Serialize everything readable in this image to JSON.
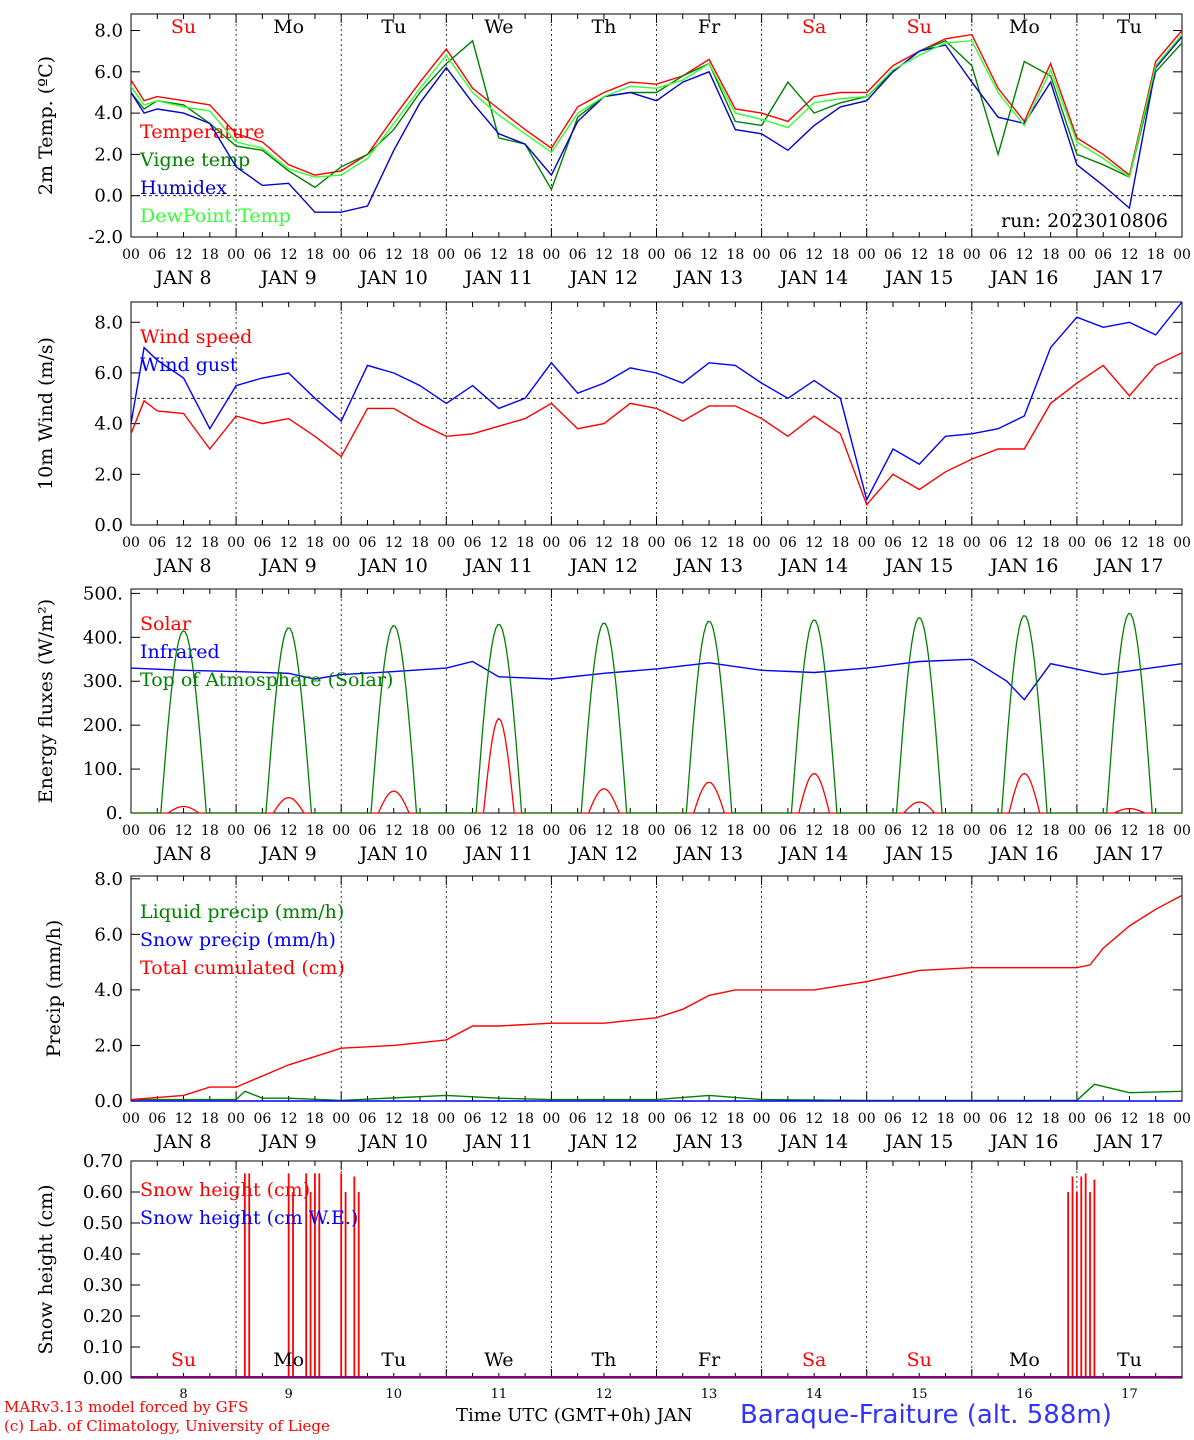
{
  "run": "run: 2023010806",
  "day_labels_top": [
    "Su",
    "Mo",
    "Tu",
    "We",
    "Th",
    "Fr",
    "Sa",
    "Su",
    "Mo",
    "Tu"
  ],
  "day_colors": [
    "#ff0000",
    "#000000",
    "#000000",
    "#000000",
    "#000000",
    "#000000",
    "#ff0000",
    "#ff0000",
    "#000000",
    "#000000"
  ],
  "hour_ticks": [
    "00",
    "06",
    "12",
    "18"
  ],
  "date_labels": [
    "JAN  8",
    "JAN  9",
    "JAN 10",
    "JAN 11",
    "JAN 12",
    "JAN 13",
    "JAN 14",
    "JAN 15",
    "JAN 16",
    "JAN 17"
  ],
  "bottom_day_numbers": [
    "8",
    "9",
    "10",
    "11",
    "12",
    "13",
    "14",
    "15",
    "16",
    "17"
  ],
  "footer": {
    "model": "MARv3.13 model forced by GFS",
    "credit": "(c) Lab. of Climatology, University of Liege",
    "xlabel": "Time UTC (GMT+0h) JAN",
    "station": "Baraque-Fraiture (alt. 588m)"
  },
  "chart_data": [
    {
      "type": "line",
      "ylabel": "2m Temp. (ºC)",
      "ylim": [
        -2,
        8.8
      ],
      "yticks": [
        "-2.0",
        "0.0",
        "2.0",
        "4.0",
        "6.0",
        "8.0"
      ],
      "ref_line": 0,
      "x_unit": "hours since Jan 8 00 UTC",
      "series": [
        {
          "name": "Temperature",
          "color": "#ff0000",
          "x": [
            0,
            3,
            6,
            12,
            18,
            24,
            30,
            36,
            42,
            48,
            54,
            60,
            66,
            72,
            78,
            84,
            90,
            96,
            102,
            108,
            114,
            120,
            126,
            132,
            138,
            144,
            150,
            156,
            162,
            168,
            174,
            180,
            186,
            192,
            198,
            204,
            210,
            216,
            222,
            228,
            234,
            240
          ],
          "y": [
            5.6,
            4.6,
            4.8,
            4.6,
            4.4,
            3.0,
            2.6,
            1.5,
            1.0,
            1.2,
            2.0,
            3.8,
            5.5,
            7.1,
            5.2,
            4.2,
            3.2,
            2.3,
            4.3,
            5.0,
            5.5,
            5.4,
            5.8,
            6.6,
            4.2,
            4.0,
            3.6,
            4.8,
            5.0,
            5.0,
            6.3,
            7.0,
            7.6,
            7.8,
            5.2,
            3.6,
            6.4,
            2.8,
            2.0,
            1.0,
            6.5,
            8.0
          ]
        },
        {
          "name": "Vigne temp",
          "color": "#008000",
          "x": [
            0,
            3,
            6,
            12,
            18,
            24,
            30,
            36,
            42,
            48,
            54,
            60,
            66,
            72,
            78,
            84,
            90,
            96,
            102,
            108,
            114,
            120,
            126,
            132,
            138,
            144,
            150,
            156,
            162,
            168,
            174,
            180,
            186,
            192,
            198,
            204,
            210,
            216,
            222,
            228,
            234,
            240
          ],
          "y": [
            5.0,
            4.2,
            4.6,
            4.4,
            3.5,
            2.4,
            2.2,
            1.2,
            0.4,
            1.4,
            2.0,
            3.2,
            5.0,
            6.4,
            7.5,
            2.8,
            2.5,
            0.3,
            3.8,
            4.8,
            5.0,
            5.0,
            5.8,
            6.4,
            3.6,
            3.4,
            5.5,
            4.0,
            4.5,
            4.8,
            6.0,
            7.0,
            7.5,
            6.3,
            2.0,
            6.5,
            5.8,
            2.0,
            1.5,
            0.9,
            6.0,
            7.4
          ]
        },
        {
          "name": "Humidex",
          "color": "#0000cc",
          "x": [
            0,
            3,
            6,
            12,
            18,
            24,
            30,
            36,
            42,
            48,
            54,
            60,
            66,
            72,
            78,
            84,
            90,
            96,
            102,
            108,
            114,
            120,
            126,
            132,
            138,
            144,
            150,
            156,
            162,
            168,
            174,
            180,
            186,
            192,
            198,
            204,
            210,
            216,
            222,
            228,
            234,
            240
          ],
          "y": [
            5.0,
            4.0,
            4.2,
            4.0,
            3.5,
            1.4,
            0.5,
            0.6,
            -0.8,
            -0.8,
            -0.5,
            2.2,
            4.5,
            6.2,
            4.5,
            3.0,
            2.5,
            1.0,
            3.6,
            4.8,
            5.0,
            4.6,
            5.5,
            6.0,
            3.2,
            3.0,
            2.2,
            3.4,
            4.3,
            4.6,
            6.0,
            7.0,
            7.3,
            5.5,
            3.8,
            3.5,
            5.5,
            1.5,
            0.5,
            -0.6,
            6.2,
            7.7
          ]
        },
        {
          "name": "DewPoint Temp",
          "color": "#33ff33",
          "x": [
            0,
            3,
            6,
            12,
            18,
            24,
            30,
            36,
            42,
            48,
            54,
            60,
            66,
            72,
            78,
            84,
            90,
            96,
            102,
            108,
            114,
            120,
            126,
            132,
            138,
            144,
            150,
            156,
            162,
            168,
            174,
            180,
            186,
            192,
            198,
            204,
            210,
            216,
            222,
            228,
            234,
            240
          ],
          "y": [
            5.3,
            4.4,
            4.6,
            4.3,
            4.1,
            2.6,
            2.3,
            1.3,
            0.9,
            1.0,
            1.8,
            3.5,
            5.2,
            6.8,
            5.0,
            3.9,
            3.0,
            2.1,
            4.0,
            4.8,
            5.3,
            5.2,
            5.6,
            6.4,
            4.0,
            3.7,
            3.3,
            4.5,
            4.7,
            4.8,
            6.1,
            6.8,
            7.4,
            7.5,
            5.0,
            3.4,
            6.1,
            2.6,
            1.8,
            0.9,
            6.3,
            7.8
          ]
        }
      ]
    },
    {
      "type": "line",
      "ylabel": "10m Wind (m/s)",
      "ylim": [
        0,
        8.8
      ],
      "yticks": [
        "0.0",
        "2.0",
        "4.0",
        "6.0",
        "8.0"
      ],
      "ref_line": 5,
      "series": [
        {
          "name": "Wind speed",
          "color": "#ff0000",
          "x": [
            0,
            3,
            6,
            12,
            18,
            24,
            30,
            36,
            42,
            48,
            54,
            60,
            66,
            72,
            78,
            84,
            90,
            96,
            102,
            108,
            114,
            120,
            126,
            132,
            138,
            144,
            150,
            156,
            162,
            168,
            174,
            180,
            186,
            192,
            198,
            204,
            210,
            216,
            222,
            228,
            234,
            240
          ],
          "y": [
            3.6,
            4.9,
            4.5,
            4.4,
            3.0,
            4.3,
            4.0,
            4.2,
            3.5,
            2.7,
            4.6,
            4.6,
            4.0,
            3.5,
            3.6,
            3.9,
            4.2,
            4.8,
            3.8,
            4.0,
            4.8,
            4.6,
            4.1,
            4.7,
            4.7,
            4.2,
            3.5,
            4.3,
            3.6,
            0.8,
            2.0,
            1.4,
            2.1,
            2.6,
            3.0,
            3.0,
            4.8,
            5.6,
            6.3,
            5.1,
            6.3,
            6.8
          ]
        },
        {
          "name": "Wind gust",
          "color": "#0000ff",
          "x": [
            0,
            3,
            6,
            12,
            18,
            24,
            30,
            36,
            42,
            48,
            54,
            60,
            66,
            72,
            78,
            84,
            90,
            96,
            102,
            108,
            114,
            120,
            126,
            132,
            138,
            144,
            150,
            156,
            162,
            168,
            174,
            180,
            186,
            192,
            198,
            204,
            210,
            216,
            222,
            228,
            234,
            240
          ],
          "y": [
            4.0,
            7.0,
            6.5,
            5.8,
            3.8,
            5.5,
            5.8,
            6.0,
            5.0,
            4.1,
            6.3,
            6.0,
            5.5,
            4.8,
            5.5,
            4.6,
            5.0,
            6.4,
            5.2,
            5.6,
            6.2,
            6.0,
            5.6,
            6.4,
            6.3,
            5.6,
            5.0,
            5.7,
            5.0,
            1.0,
            3.0,
            2.4,
            3.5,
            3.6,
            3.8,
            4.3,
            7.0,
            8.2,
            7.8,
            8.0,
            7.5,
            8.8
          ]
        }
      ]
    },
    {
      "type": "line",
      "ylabel": "Energy fluxes (W/m²)",
      "ylim": [
        0,
        510
      ],
      "yticks": [
        "0.",
        "100.",
        "200.",
        "300.",
        "400.",
        "500."
      ],
      "series": [
        {
          "name": "Solar",
          "color": "#ff0000",
          "daily_peak": [
            15,
            35,
            50,
            215,
            55,
            70,
            90,
            25,
            90,
            10
          ]
        },
        {
          "name": "Infrared",
          "color": "#0000ff",
          "x": [
            0,
            12,
            24,
            36,
            42,
            48,
            60,
            72,
            78,
            84,
            96,
            108,
            120,
            132,
            144,
            156,
            168,
            180,
            192,
            200,
            204,
            210,
            222,
            240
          ],
          "y": [
            330,
            325,
            322,
            318,
            305,
            315,
            322,
            330,
            345,
            310,
            305,
            318,
            328,
            342,
            325,
            320,
            330,
            345,
            350,
            300,
            258,
            340,
            315,
            340
          ]
        },
        {
          "name": "Top of Atmosphere (Solar)",
          "color": "#008000",
          "daily_peak": [
            415,
            422,
            427,
            430,
            433,
            437,
            440,
            445,
            450,
            455
          ]
        }
      ]
    },
    {
      "type": "line",
      "ylabel": "Precip (mm/h)",
      "ylim": [
        0,
        8.1
      ],
      "yticks": [
        "0.0",
        "2.0",
        "4.0",
        "6.0",
        "8.0"
      ],
      "series": [
        {
          "name": "Liquid precip (mm/h)",
          "color": "#008000",
          "x": [
            0,
            24,
            26,
            30,
            36,
            48,
            72,
            84,
            96,
            120,
            132,
            144,
            168,
            216,
            220,
            228,
            240
          ],
          "y": [
            0.05,
            0.05,
            0.35,
            0.1,
            0.1,
            0.02,
            0.2,
            0.1,
            0.05,
            0.05,
            0.2,
            0.05,
            0.02,
            0.02,
            0.6,
            0.3,
            0.35
          ]
        },
        {
          "name": "Snow precip (mm/h)",
          "color": "#0000ff",
          "x": [
            0,
            240
          ],
          "y": [
            0.0,
            0.0
          ]
        },
        {
          "name": "Total cumulated (cm)",
          "color": "#ff0000",
          "x": [
            0,
            12,
            18,
            24,
            30,
            36,
            42,
            48,
            60,
            72,
            78,
            84,
            96,
            108,
            120,
            126,
            132,
            138,
            144,
            150,
            156,
            168,
            180,
            192,
            204,
            216,
            219,
            222,
            228,
            234,
            240
          ],
          "y": [
            0.05,
            0.2,
            0.5,
            0.5,
            0.9,
            1.3,
            1.6,
            1.9,
            2.0,
            2.2,
            2.7,
            2.7,
            2.8,
            2.8,
            3.0,
            3.3,
            3.8,
            4.0,
            4.0,
            4.0,
            4.0,
            4.3,
            4.7,
            4.8,
            4.8,
            4.8,
            4.9,
            5.5,
            6.3,
            6.9,
            7.4
          ]
        }
      ]
    },
    {
      "type": "bar",
      "ylabel": "Snow height (cm)",
      "ylim": [
        0,
        0.7
      ],
      "yticks": [
        "0.00",
        "0.10",
        "0.20",
        "0.30",
        "0.40",
        "0.50",
        "0.60",
        "0.70"
      ],
      "series": [
        {
          "name": "Snow height (cm)",
          "color": "#ff0000",
          "spikes_x": [
            26,
            27,
            36,
            37,
            40,
            41,
            42,
            43,
            48,
            49,
            51,
            52,
            214,
            215,
            216,
            217,
            218,
            219,
            220
          ],
          "spikes_y": [
            0.66,
            0.66,
            0.66,
            0.6,
            0.66,
            0.6,
            0.66,
            0.66,
            0.66,
            0.6,
            0.65,
            0.6,
            0.6,
            0.65,
            0.6,
            0.65,
            0.66,
            0.6,
            0.64
          ]
        },
        {
          "name": "Snow height (cm W.E.)",
          "color": "#0000ff",
          "spikes_x": [],
          "spikes_y": []
        }
      ]
    }
  ]
}
